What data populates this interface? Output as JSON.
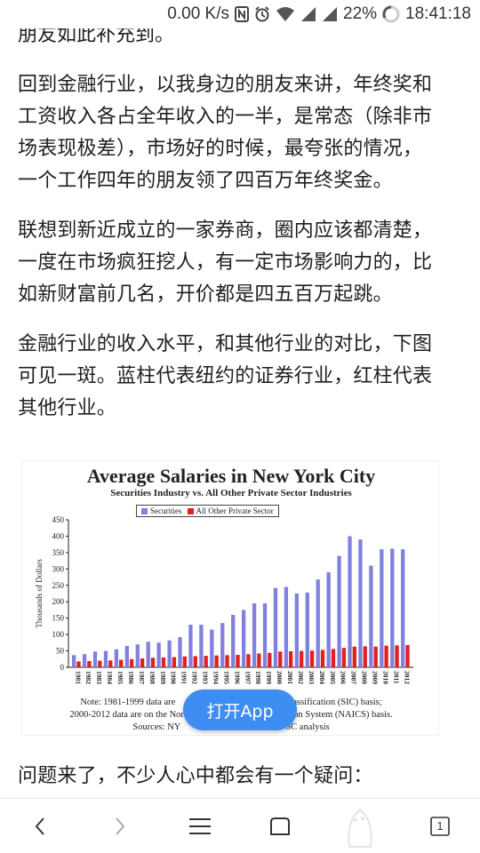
{
  "status_bar": {
    "net_speed": "0.00 K/s",
    "battery": "22%",
    "time": "18:41:18"
  },
  "article": {
    "cut_line": "朋友如此补充到。",
    "paragraphs": [
      [
        "回到金融行业，以我身边的朋友来讲，年终奖和",
        "工资收入各占全年收入的一半，是常态（除非市",
        "场表现极差），市场好的时候，最夸张的情况，",
        "一个工作四年的朋友领了四百万年终奖金。"
      ],
      [
        "联想到新近成立的一家券商，圈内应该都清楚，",
        "一度在市场疯狂挖人，有一定市场影响力的，比",
        "如新财富前几名，开价都是四五百万起跳。"
      ],
      [
        "金融行业的收入水平，和其他行业的对比，下图",
        "可见一斑。蓝柱代表纽约的证券行业，红柱代表",
        "其他行业。"
      ],
      [
        "问题来了，不少人心中都会有一个疑问："
      ]
    ]
  },
  "figure": {
    "note_line1_left": "Note: 1981-1999 data are",
    "note_line1_right": "assification (SIC) basis;",
    "note_line2_left": "2000-2012 data are on the North",
    "note_line2_right": "cation System (NAICS) basis.",
    "note_line3_left": "Sources: NY",
    "note_line3_right": "SC analysis"
  },
  "open_app_label": "打开App",
  "bottom_nav": {
    "tab_count": "1"
  },
  "chart_data": {
    "type": "bar",
    "title": "Average Salaries in New York City",
    "subtitle": "Securities Industry vs. All Other Private Sector Industries",
    "ylabel": "Thousands of Dollars",
    "xlabel": "",
    "ylim": [
      0,
      450
    ],
    "yticks": [
      0,
      50,
      100,
      150,
      200,
      250,
      300,
      350,
      400,
      450
    ],
    "categories": [
      "1981",
      "1982",
      "1983",
      "1984",
      "1985",
      "1986",
      "1987",
      "1988",
      "1989",
      "1990",
      "1991",
      "1992",
      "1993",
      "1994",
      "1995",
      "1996",
      "1997",
      "1998",
      "1999",
      "2000",
      "2001",
      "2002",
      "2003",
      "2004",
      "2005",
      "2006",
      "2007",
      "2008",
      "2009",
      "2010",
      "2011",
      "2012"
    ],
    "series": [
      {
        "name": "Securities",
        "color": "#8080e0",
        "values": [
          37,
          40,
          48,
          50,
          55,
          65,
          70,
          78,
          75,
          82,
          92,
          130,
          130,
          115,
          135,
          160,
          175,
          195,
          195,
          242,
          245,
          225,
          228,
          268,
          290,
          340,
          400,
          390,
          310,
          360,
          362,
          360
        ]
      },
      {
        "name": "All Other Private Sector",
        "color": "#e02020",
        "values": [
          18,
          19,
          20,
          21,
          23,
          25,
          27,
          29,
          30,
          31,
          33,
          34,
          35,
          36,
          37,
          38,
          40,
          42,
          44,
          48,
          49,
          50,
          51,
          53,
          56,
          59,
          63,
          64,
          63,
          66,
          67,
          68
        ]
      }
    ],
    "legend_position": "top",
    "grid": false
  }
}
